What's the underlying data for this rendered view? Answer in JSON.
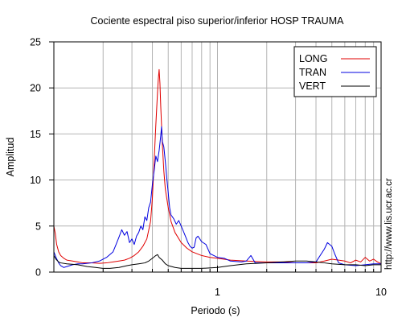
{
  "chart_data": {
    "type": "line",
    "title": "Cociente espectral piso superior/inferior  HOSP TRAUMA",
    "xlabel": "Periodo (s)",
    "ylabel": "Amplitud",
    "xscale": "log",
    "xlim": [
      0.1,
      10
    ],
    "ylim": [
      0,
      25
    ],
    "xticks": [
      1,
      10
    ],
    "xtick_labels": [
      "1",
      "10"
    ],
    "yticks": [
      0,
      5,
      10,
      15,
      20,
      25
    ],
    "grid": true,
    "legend_position": "top-right",
    "side_text": "http://www.lis.ucr.ac.cr",
    "series": [
      {
        "name": "LONG",
        "color": "#e00000",
        "points": [
          [
            0.1,
            5.0
          ],
          [
            0.102,
            4.2
          ],
          [
            0.104,
            3.0
          ],
          [
            0.107,
            2.2
          ],
          [
            0.11,
            1.8
          ],
          [
            0.115,
            1.5
          ],
          [
            0.12,
            1.3
          ],
          [
            0.13,
            1.2
          ],
          [
            0.14,
            1.1
          ],
          [
            0.15,
            1.0
          ],
          [
            0.17,
            1.0
          ],
          [
            0.19,
            0.95
          ],
          [
            0.21,
            1.0
          ],
          [
            0.23,
            1.1
          ],
          [
            0.25,
            1.2
          ],
          [
            0.27,
            1.3
          ],
          [
            0.29,
            1.5
          ],
          [
            0.31,
            1.8
          ],
          [
            0.33,
            2.2
          ],
          [
            0.35,
            2.8
          ],
          [
            0.37,
            3.6
          ],
          [
            0.39,
            5.5
          ],
          [
            0.4,
            8.0
          ],
          [
            0.41,
            12.0
          ],
          [
            0.42,
            16.0
          ],
          [
            0.43,
            19.5
          ],
          [
            0.435,
            21.0
          ],
          [
            0.44,
            22.0
          ],
          [
            0.445,
            20.5
          ],
          [
            0.45,
            18.0
          ],
          [
            0.46,
            14.0
          ],
          [
            0.47,
            11.0
          ],
          [
            0.48,
            9.0
          ],
          [
            0.5,
            7.0
          ],
          [
            0.52,
            5.5
          ],
          [
            0.55,
            4.3
          ],
          [
            0.6,
            3.2
          ],
          [
            0.65,
            2.6
          ],
          [
            0.7,
            2.2
          ],
          [
            0.8,
            1.8
          ],
          [
            0.9,
            1.6
          ],
          [
            1.0,
            1.5
          ],
          [
            1.2,
            1.3
          ],
          [
            1.5,
            1.2
          ],
          [
            2.0,
            1.1
          ],
          [
            2.5,
            1.1
          ],
          [
            3.0,
            1.0
          ],
          [
            3.5,
            1.0
          ],
          [
            4.0,
            1.0
          ],
          [
            4.5,
            1.2
          ],
          [
            5.0,
            1.4
          ],
          [
            5.5,
            1.3
          ],
          [
            6.0,
            1.2
          ],
          [
            6.5,
            1.0
          ],
          [
            7.0,
            1.3
          ],
          [
            7.5,
            1.1
          ],
          [
            8.0,
            1.6
          ],
          [
            8.5,
            1.2
          ],
          [
            9.0,
            1.4
          ],
          [
            9.5,
            1.1
          ],
          [
            10.0,
            0.9
          ]
        ]
      },
      {
        "name": "TRAN",
        "color": "#0000e0",
        "points": [
          [
            0.1,
            2.2
          ],
          [
            0.103,
            1.6
          ],
          [
            0.107,
            1.0
          ],
          [
            0.11,
            0.7
          ],
          [
            0.115,
            0.5
          ],
          [
            0.12,
            0.6
          ],
          [
            0.13,
            0.8
          ],
          [
            0.14,
            0.9
          ],
          [
            0.15,
            0.9
          ],
          [
            0.17,
            1.0
          ],
          [
            0.19,
            1.2
          ],
          [
            0.21,
            1.6
          ],
          [
            0.23,
            2.2
          ],
          [
            0.24,
            3.0
          ],
          [
            0.25,
            3.8
          ],
          [
            0.26,
            4.6
          ],
          [
            0.27,
            4.0
          ],
          [
            0.28,
            4.4
          ],
          [
            0.29,
            3.2
          ],
          [
            0.3,
            3.6
          ],
          [
            0.31,
            3.0
          ],
          [
            0.32,
            3.9
          ],
          [
            0.33,
            4.3
          ],
          [
            0.34,
            5.0
          ],
          [
            0.35,
            4.6
          ],
          [
            0.36,
            6.0
          ],
          [
            0.37,
            5.6
          ],
          [
            0.38,
            7.0
          ],
          [
            0.39,
            7.6
          ],
          [
            0.4,
            9.5
          ],
          [
            0.41,
            11.0
          ],
          [
            0.42,
            12.6
          ],
          [
            0.43,
            12.0
          ],
          [
            0.44,
            13.2
          ],
          [
            0.45,
            14.8
          ],
          [
            0.455,
            15.8
          ],
          [
            0.46,
            14.2
          ],
          [
            0.47,
            13.6
          ],
          [
            0.48,
            12.0
          ],
          [
            0.49,
            10.2
          ],
          [
            0.5,
            8.6
          ],
          [
            0.51,
            7.0
          ],
          [
            0.52,
            6.2
          ],
          [
            0.54,
            5.8
          ],
          [
            0.56,
            5.2
          ],
          [
            0.58,
            5.6
          ],
          [
            0.6,
            5.0
          ],
          [
            0.62,
            4.4
          ],
          [
            0.64,
            3.8
          ],
          [
            0.66,
            3.2
          ],
          [
            0.68,
            2.8
          ],
          [
            0.7,
            2.6
          ],
          [
            0.72,
            2.7
          ],
          [
            0.74,
            3.7
          ],
          [
            0.76,
            3.9
          ],
          [
            0.78,
            3.6
          ],
          [
            0.8,
            3.3
          ],
          [
            0.85,
            3.0
          ],
          [
            0.9,
            2.0
          ],
          [
            0.95,
            1.8
          ],
          [
            1.0,
            1.6
          ],
          [
            1.1,
            1.5
          ],
          [
            1.2,
            1.2
          ],
          [
            1.4,
            1.1
          ],
          [
            1.5,
            1.2
          ],
          [
            1.6,
            1.8
          ],
          [
            1.7,
            1.0
          ],
          [
            2.0,
            1.0
          ],
          [
            2.5,
            1.0
          ],
          [
            3.0,
            1.0
          ],
          [
            3.5,
            1.0
          ],
          [
            4.0,
            1.1
          ],
          [
            4.5,
            2.5
          ],
          [
            4.7,
            3.2
          ],
          [
            5.0,
            2.8
          ],
          [
            5.2,
            2.0
          ],
          [
            5.5,
            1.0
          ],
          [
            6.0,
            0.8
          ],
          [
            7.0,
            0.7
          ],
          [
            8.0,
            0.8
          ],
          [
            9.0,
            0.9
          ],
          [
            10.0,
            0.9
          ]
        ]
      },
      {
        "name": "VERT",
        "color": "#000000",
        "points": [
          [
            0.1,
            1.8
          ],
          [
            0.103,
            1.4
          ],
          [
            0.107,
            1.1
          ],
          [
            0.11,
            1.0
          ],
          [
            0.12,
            0.9
          ],
          [
            0.14,
            0.8
          ],
          [
            0.16,
            0.6
          ],
          [
            0.18,
            0.5
          ],
          [
            0.2,
            0.4
          ],
          [
            0.22,
            0.4
          ],
          [
            0.25,
            0.5
          ],
          [
            0.28,
            0.7
          ],
          [
            0.3,
            0.8
          ],
          [
            0.33,
            0.9
          ],
          [
            0.36,
            1.0
          ],
          [
            0.38,
            1.2
          ],
          [
            0.4,
            1.5
          ],
          [
            0.42,
            1.8
          ],
          [
            0.43,
            1.9
          ],
          [
            0.44,
            1.6
          ],
          [
            0.46,
            1.3
          ],
          [
            0.48,
            0.9
          ],
          [
            0.5,
            0.7
          ],
          [
            0.55,
            0.5
          ],
          [
            0.6,
            0.4
          ],
          [
            0.7,
            0.4
          ],
          [
            0.8,
            0.4
          ],
          [
            1.0,
            0.5
          ],
          [
            1.2,
            0.7
          ],
          [
            1.5,
            0.9
          ],
          [
            2.0,
            1.0
          ],
          [
            2.5,
            1.1
          ],
          [
            3.0,
            1.2
          ],
          [
            3.5,
            1.2
          ],
          [
            4.0,
            1.1
          ],
          [
            4.5,
            1.0
          ],
          [
            5.0,
            0.9
          ],
          [
            6.0,
            0.8
          ],
          [
            7.0,
            0.8
          ],
          [
            8.0,
            0.7
          ],
          [
            9.0,
            0.8
          ],
          [
            10.0,
            0.8
          ]
        ]
      }
    ]
  }
}
